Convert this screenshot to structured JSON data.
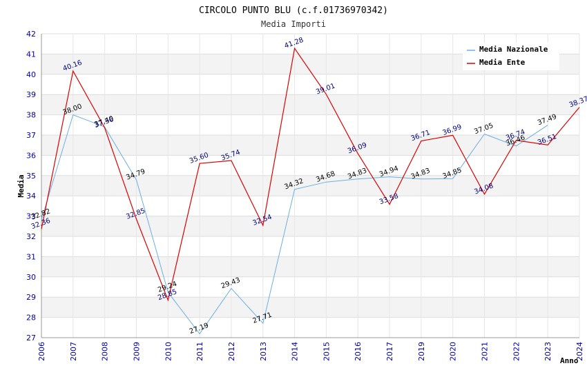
{
  "chart_data": {
    "type": "line",
    "title": "CIRCOLO PUNTO BLU (c.f.01736970342)",
    "subtitle": "Media Importi",
    "xlabel": "Anno",
    "ylabel": "Media",
    "ylim": [
      27,
      42
    ],
    "yticks": [
      "27",
      "28",
      "29",
      "30",
      "31",
      "32",
      "33",
      "34",
      "35",
      "36",
      "37",
      "38",
      "39",
      "40",
      "41",
      "42"
    ],
    "categories": [
      "2006",
      "2007",
      "2008",
      "2009",
      "2010",
      "2011",
      "2012",
      "2013",
      "2014",
      "2015",
      "2016",
      "2017",
      "2019",
      "2020",
      "2021",
      "2022",
      "2023",
      "2024"
    ],
    "grid": true,
    "legend_position": "top-right",
    "series": [
      {
        "name": "Media Nazionale",
        "color": "#6aaee8",
        "values": [
          32.82,
          38.0,
          37.4,
          34.79,
          29.24,
          27.19,
          29.43,
          27.71,
          34.32,
          34.68,
          34.83,
          34.94,
          34.83,
          34.85,
          37.05,
          36.46,
          37.49,
          null
        ],
        "labels": [
          "32.82",
          "38.00",
          "37.40",
          "34.79",
          "29.24",
          "27.19",
          "29.43",
          "27.71",
          "34.32",
          "34.68",
          "34.83",
          "34.94",
          "34.83",
          "34.85",
          "37.05",
          "36.46",
          "37.49",
          ""
        ]
      },
      {
        "name": "Media Ente",
        "color": "#dd0000",
        "values": [
          32.36,
          40.16,
          37.36,
          32.85,
          28.85,
          35.6,
          35.74,
          32.54,
          41.28,
          39.01,
          36.09,
          33.58,
          36.71,
          36.99,
          34.08,
          36.74,
          36.51,
          38.37
        ],
        "labels": [
          "32.36",
          "40.16",
          "37.36",
          "32.85",
          "28.85",
          "35.60",
          "35.74",
          "32.54",
          "41.28",
          "39.01",
          "36.09",
          "33.58",
          "36.71",
          "36.99",
          "34.08",
          "36.74",
          "36.51",
          "38.37"
        ]
      }
    ]
  }
}
